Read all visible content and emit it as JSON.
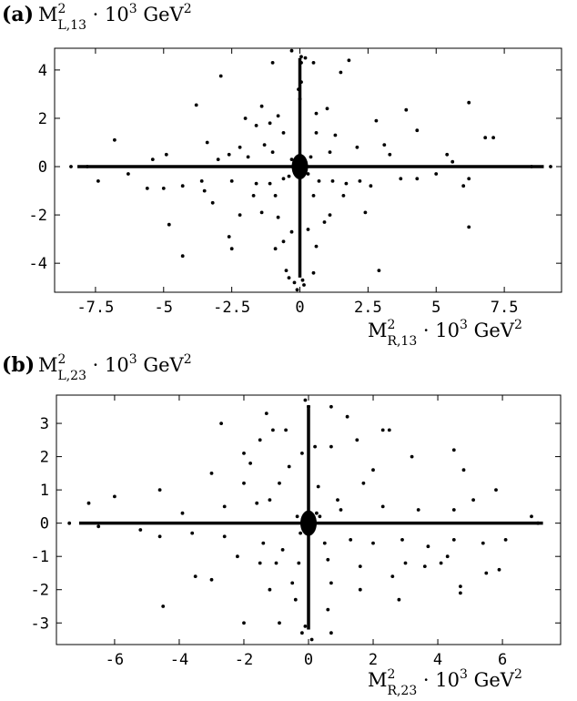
{
  "chart_data": [
    {
      "type": "scatter",
      "panel_label": "(a)",
      "ylabel": {
        "base": "M",
        "sup": "2",
        "sub": "L,13",
        "tail": " · 10",
        "tail_sup": "3",
        "unit": " GeV",
        "unit_sup": "2"
      },
      "xlabel": {
        "base": "M",
        "sup": "2",
        "sub": "R,13",
        "tail": " · 10",
        "tail_sup": "3",
        "unit": " GeV",
        "unit_sup": "2"
      },
      "xlim": [
        -9,
        9.6
      ],
      "ylim": [
        -5.2,
        4.9
      ],
      "xticks": [
        -7.5,
        -5,
        -2.5,
        0,
        2.5,
        5,
        7.5
      ],
      "xtick_labels": [
        "-7.5",
        "-5",
        "-2.5",
        "0",
        "2.5",
        "5",
        "7.5"
      ],
      "yticks": [
        -4,
        -2,
        0,
        2,
        4
      ],
      "ytick_labels": [
        "-4",
        "-2",
        "0",
        "2",
        "4"
      ],
      "grid": false,
      "marker_color": "#000000",
      "points": [
        [
          -0.3,
          4.8
        ],
        [
          0.05,
          4.55
        ],
        [
          0.2,
          4.5
        ],
        [
          0.05,
          4.3
        ],
        [
          -1.0,
          4.3
        ],
        [
          1.8,
          4.4
        ],
        [
          0.5,
          4.3
        ],
        [
          -2.9,
          3.75
        ],
        [
          1.5,
          3.9
        ],
        [
          -0.05,
          3.2
        ],
        [
          0.05,
          3.5
        ],
        [
          0.0,
          2.8
        ],
        [
          3.9,
          2.35
        ],
        [
          6.2,
          2.65
        ],
        [
          -3.8,
          2.55
        ],
        [
          -1.4,
          2.5
        ],
        [
          1.0,
          2.4
        ],
        [
          0.6,
          2.2
        ],
        [
          -0.8,
          2.1
        ],
        [
          -2.0,
          2.0
        ],
        [
          -1.6,
          1.7
        ],
        [
          -0.6,
          1.4
        ],
        [
          0.6,
          1.4
        ],
        [
          1.3,
          1.3
        ],
        [
          -1.1,
          1.8
        ],
        [
          2.8,
          1.9
        ],
        [
          4.3,
          1.5
        ],
        [
          6.8,
          1.2
        ],
        [
          7.1,
          1.2
        ],
        [
          -6.8,
          1.1
        ],
        [
          -3.4,
          1.0
        ],
        [
          -2.2,
          0.8
        ],
        [
          -1.3,
          0.9
        ],
        [
          -2.6,
          0.5
        ],
        [
          -1.9,
          0.4
        ],
        [
          -1.0,
          0.6
        ],
        [
          1.1,
          0.6
        ],
        [
          2.1,
          0.8
        ],
        [
          3.1,
          0.9
        ],
        [
          3.3,
          0.5
        ],
        [
          5.4,
          0.5
        ],
        [
          5.6,
          0.2
        ],
        [
          -5.4,
          0.3
        ],
        [
          -3.0,
          0.3
        ],
        [
          -4.9,
          0.5
        ],
        [
          -7.4,
          -0.6
        ],
        [
          -6.3,
          -0.3
        ],
        [
          -5.6,
          -0.9
        ],
        [
          -5.0,
          -0.9
        ],
        [
          -4.3,
          -0.8
        ],
        [
          -3.6,
          -0.6
        ],
        [
          -3.5,
          -1.0
        ],
        [
          -3.2,
          -1.5
        ],
        [
          -2.5,
          -0.6
        ],
        [
          -1.6,
          -0.7
        ],
        [
          -1.1,
          -0.7
        ],
        [
          -0.6,
          -0.5
        ],
        [
          -0.9,
          -1.2
        ],
        [
          0.5,
          -1.2
        ],
        [
          0.7,
          -0.6
        ],
        [
          1.2,
          -0.6
        ],
        [
          1.7,
          -0.7
        ],
        [
          2.2,
          -0.6
        ],
        [
          2.6,
          -0.8
        ],
        [
          3.7,
          -0.5
        ],
        [
          4.3,
          -0.5
        ],
        [
          5.0,
          -0.3
        ],
        [
          6.0,
          -0.8
        ],
        [
          6.2,
          -0.5
        ],
        [
          1.1,
          -2.0
        ],
        [
          2.4,
          -1.9
        ],
        [
          -2.2,
          -2.0
        ],
        [
          -1.4,
          -1.9
        ],
        [
          -0.8,
          -2.1
        ],
        [
          0.9,
          -2.3
        ],
        [
          -4.8,
          -2.4
        ],
        [
          -2.6,
          -2.9
        ],
        [
          -2.5,
          -3.4
        ],
        [
          -0.6,
          -3.1
        ],
        [
          0.6,
          -3.3
        ],
        [
          -0.9,
          -3.4
        ],
        [
          -4.3,
          -3.7
        ],
        [
          -0.5,
          -4.3
        ],
        [
          -0.4,
          -4.6
        ],
        [
          -0.2,
          -4.8
        ],
        [
          0.15,
          -4.9
        ],
        [
          2.9,
          -4.3
        ],
        [
          0.5,
          -4.4
        ],
        [
          6.2,
          -2.5
        ],
        [
          -0.3,
          -2.7
        ],
        [
          0.3,
          -2.6
        ],
        [
          -0.1,
          -5.1
        ],
        [
          0.1,
          -4.7
        ],
        [
          -1.7,
          -1.2
        ],
        [
          1.6,
          -1.2
        ],
        [
          -8.4,
          0.0
        ],
        [
          8.5,
          0.0
        ],
        [
          9.2,
          0.0
        ],
        [
          -7.8,
          0.0
        ],
        [
          -0.3,
          0.3
        ],
        [
          0.3,
          -0.3
        ],
        [
          0.4,
          0.4
        ],
        [
          -0.4,
          -0.4
        ]
      ],
      "cross_density_note": "dense clusters along x=0 and y=0 drawn as stripes"
    },
    {
      "type": "scatter",
      "panel_label": "(b)",
      "ylabel": {
        "base": "M",
        "sup": "2",
        "sub": "L,23",
        "tail": " · 10",
        "tail_sup": "3",
        "unit": " GeV",
        "unit_sup": "2"
      },
      "xlabel": {
        "base": "M",
        "sup": "2",
        "sub": "R,23",
        "tail": " · 10",
        "tail_sup": "3",
        "unit": " GeV",
        "unit_sup": "2"
      },
      "xlim": [
        -7.8,
        7.8
      ],
      "ylim": [
        -3.65,
        3.85
      ],
      "xticks": [
        -6,
        -4,
        -2,
        0,
        2,
        4,
        6
      ],
      "xtick_labels": [
        "-6",
        "-4",
        "-2",
        "0",
        "2",
        "4",
        "6"
      ],
      "yticks": [
        -3,
        -2,
        -1,
        0,
        1,
        2,
        3
      ],
      "ytick_labels": [
        "-3",
        "-2",
        "-1",
        "0",
        "1",
        "2",
        "3"
      ],
      "grid": false,
      "marker_color": "#000000",
      "points": [
        [
          -0.1,
          3.7
        ],
        [
          0.0,
          3.5
        ],
        [
          0.7,
          3.5
        ],
        [
          -1.3,
          3.3
        ],
        [
          -2.7,
          3.0
        ],
        [
          -1.1,
          2.8
        ],
        [
          -0.7,
          2.8
        ],
        [
          1.2,
          3.2
        ],
        [
          2.3,
          2.8
        ],
        [
          2.5,
          2.8
        ],
        [
          -1.5,
          2.5
        ],
        [
          1.5,
          2.5
        ],
        [
          0.7,
          2.3
        ],
        [
          -2.0,
          2.1
        ],
        [
          4.5,
          2.2
        ],
        [
          3.2,
          2.0
        ],
        [
          -1.8,
          1.8
        ],
        [
          -0.6,
          1.7
        ],
        [
          2.0,
          1.6
        ],
        [
          4.8,
          1.6
        ],
        [
          -3.0,
          1.5
        ],
        [
          -2.0,
          1.2
        ],
        [
          -0.9,
          1.2
        ],
        [
          1.7,
          1.2
        ],
        [
          -4.6,
          1.0
        ],
        [
          -6.0,
          0.8
        ],
        [
          -6.8,
          0.6
        ],
        [
          5.8,
          1.0
        ],
        [
          5.1,
          0.7
        ],
        [
          -3.9,
          0.3
        ],
        [
          -2.6,
          0.5
        ],
        [
          -1.6,
          0.6
        ],
        [
          -1.2,
          0.7
        ],
        [
          0.9,
          0.7
        ],
        [
          1.0,
          0.4
        ],
        [
          2.3,
          0.5
        ],
        [
          3.4,
          0.4
        ],
        [
          4.5,
          0.4
        ],
        [
          6.9,
          0.2
        ],
        [
          7.1,
          0.0
        ],
        [
          -7.4,
          0.0
        ],
        [
          -6.5,
          -0.1
        ],
        [
          -5.2,
          -0.2
        ],
        [
          -4.6,
          -0.4
        ],
        [
          -3.6,
          -0.3
        ],
        [
          -2.6,
          -0.4
        ],
        [
          -1.4,
          -0.6
        ],
        [
          -0.8,
          -0.8
        ],
        [
          0.5,
          -0.6
        ],
        [
          1.3,
          -0.5
        ],
        [
          2.0,
          -0.6
        ],
        [
          2.9,
          -0.5
        ],
        [
          3.7,
          -0.7
        ],
        [
          4.5,
          -0.5
        ],
        [
          5.4,
          -0.6
        ],
        [
          6.1,
          -0.5
        ],
        [
          -2.2,
          -1.0
        ],
        [
          -1.5,
          -1.2
        ],
        [
          -1.0,
          -1.2
        ],
        [
          0.6,
          -1.1
        ],
        [
          1.6,
          -1.3
        ],
        [
          3.0,
          -1.2
        ],
        [
          3.6,
          -1.3
        ],
        [
          4.1,
          -1.2
        ],
        [
          4.3,
          -1.0
        ],
        [
          -3.5,
          -1.6
        ],
        [
          -3.0,
          -1.7
        ],
        [
          -0.5,
          -1.8
        ],
        [
          0.7,
          -1.8
        ],
        [
          2.6,
          -1.6
        ],
        [
          4.7,
          -1.9
        ],
        [
          4.7,
          -2.1
        ],
        [
          5.5,
          -1.5
        ],
        [
          5.9,
          -1.4
        ],
        [
          -1.2,
          -2.0
        ],
        [
          1.6,
          -2.0
        ],
        [
          -4.5,
          -2.5
        ],
        [
          2.8,
          -2.3
        ],
        [
          -2.0,
          -3.0
        ],
        [
          -0.9,
          -3.0
        ],
        [
          -0.2,
          -3.3
        ],
        [
          0.7,
          -3.3
        ],
        [
          0.1,
          -3.5
        ],
        [
          -0.1,
          -3.1
        ],
        [
          0.6,
          -2.6
        ],
        [
          -0.4,
          -2.3
        ],
        [
          -0.2,
          2.1
        ],
        [
          0.2,
          2.3
        ],
        [
          0.3,
          1.1
        ],
        [
          -0.3,
          -1.2
        ],
        [
          0.25,
          0.3
        ],
        [
          -0.25,
          -0.3
        ],
        [
          0.35,
          0.2
        ],
        [
          -0.35,
          0.2
        ]
      ],
      "cross_density_note": "dense clusters along x=0 and y=0 drawn as stripes"
    }
  ]
}
